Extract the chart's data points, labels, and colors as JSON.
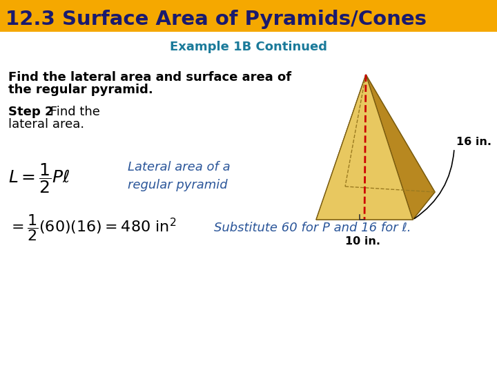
{
  "title": "12.3 Surface Area of Pyramids/Cones",
  "title_bg": "#F5A800",
  "title_color": "#1a1a6e",
  "subtitle": "Example 1B Continued",
  "subtitle_color": "#1a7a9a",
  "body_text1a": "Find the lateral area and surface area of",
  "body_text1b": "the regular pyramid.",
  "step_bold": "Step 2",
  "step_normal": " Find the",
  "step_normal2": "lateral area.",
  "formula_desc": "Lateral area of a\nregular pyramid",
  "formula2_desc": "Substitute 60 for P and 16 for ℓ.",
  "dim1": "16 in.",
  "dim2": "10 in.",
  "bg_color": "#ffffff",
  "body_color": "#000000",
  "formula_desc_color": "#2a5599",
  "formula2_desc_color": "#2a5599",
  "title_fontsize": 21,
  "subtitle_fontsize": 13,
  "body_fontsize": 13,
  "formula_fontsize": 15
}
